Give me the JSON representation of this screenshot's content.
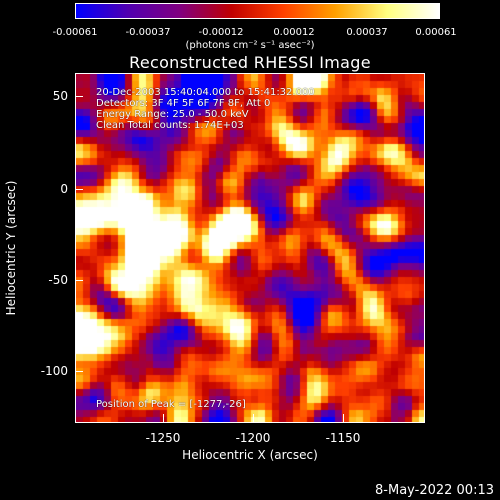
{
  "colorbar": {
    "ticks": [
      "-0.00061",
      "-0.00037",
      "-0.00012",
      "0.00012",
      "0.00037",
      "0.00061"
    ],
    "units": "(photons cm⁻² s⁻¹ asec⁻²)",
    "colors": [
      "#0000ff",
      "#5000b0",
      "#800080",
      "#c00000",
      "#ff4000",
      "#ffa000",
      "#ffff80",
      "#ffffff"
    ]
  },
  "title": "Reconstructed RHESSI Image",
  "annotations": {
    "time_range": "20-Dec-2003 15:40:04.000 to 15:41:32.000",
    "detectors": "Detectors: 3F 4F 5F 6F 7F 8F, Att 0",
    "energy": "Energy Range: 25.0 - 50.0 keV",
    "clean": "Clean     Total counts: 1.74E+03",
    "peak": "Position of Peak = [-1277,-26]"
  },
  "axes": {
    "xlabel": "Heliocentric X (arcsec)",
    "ylabel": "Heliocentric Y (arcsec)",
    "xticks": [
      "-1250",
      "-1200",
      "-1150"
    ],
    "yticks": [
      "50",
      "0",
      "-50",
      "-100"
    ]
  },
  "footer_date": "8-May-2022 00:13"
}
